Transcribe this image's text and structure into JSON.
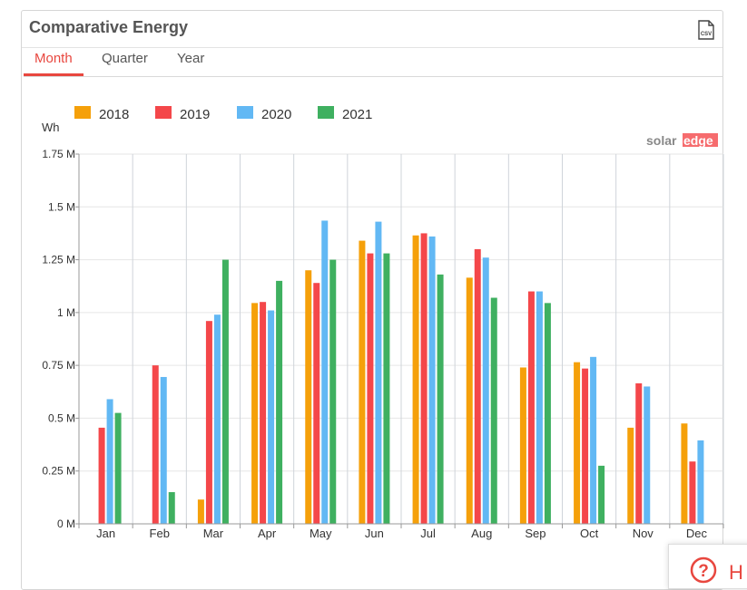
{
  "panel": {
    "title": "Comparative Energy",
    "csv_icon": "csv-download-icon",
    "csv_label": "CSV"
  },
  "tabs": [
    {
      "label": "Month",
      "active": true
    },
    {
      "label": "Quarter",
      "active": false
    },
    {
      "label": "Year",
      "active": false
    }
  ],
  "brand": {
    "prefix": "solar",
    "suffix": "edge"
  },
  "help": {
    "label": "H",
    "icon": "question-circle-icon"
  },
  "colors": {
    "accent": "#e8473f",
    "2018": "#f5a00a",
    "2019": "#f4474a",
    "2020": "#62b8f4",
    "2021": "#3fb060"
  },
  "chart_data": {
    "type": "bar",
    "ylabel": "Wh",
    "ylim": [
      0,
      1750000
    ],
    "yticks": [
      {
        "value": 0,
        "label": "0 M"
      },
      {
        "value": 250000,
        "label": "0.25 M"
      },
      {
        "value": 500000,
        "label": "0.5 M"
      },
      {
        "value": 750000,
        "label": "0.75 M"
      },
      {
        "value": 1000000,
        "label": "1 M"
      },
      {
        "value": 1250000,
        "label": "1.25 M"
      },
      {
        "value": 1500000,
        "label": "1.5 M"
      },
      {
        "value": 1750000,
        "label": "1.75 M"
      }
    ],
    "categories": [
      "Jan",
      "Feb",
      "Mar",
      "Apr",
      "May",
      "Jun",
      "Jul",
      "Aug",
      "Sep",
      "Oct",
      "Nov",
      "Dec"
    ],
    "legend_position": "top-left",
    "grid": true,
    "series": [
      {
        "name": "2018",
        "color": "#f5a00a",
        "values": [
          null,
          null,
          115000,
          1045000,
          1200000,
          1340000,
          1365000,
          1165000,
          740000,
          765000,
          455000,
          475000
        ]
      },
      {
        "name": "2019",
        "color": "#f4474a",
        "values": [
          455000,
          750000,
          960000,
          1050000,
          1140000,
          1280000,
          1375000,
          1300000,
          1100000,
          735000,
          665000,
          295000
        ]
      },
      {
        "name": "2020",
        "color": "#62b8f4",
        "values": [
          590000,
          695000,
          990000,
          1010000,
          1435000,
          1430000,
          1360000,
          1260000,
          1100000,
          790000,
          650000,
          395000
        ]
      },
      {
        "name": "2021",
        "color": "#3fb060",
        "values": [
          525000,
          150000,
          1250000,
          1150000,
          1250000,
          1280000,
          1180000,
          1070000,
          1045000,
          275000,
          null,
          null
        ]
      }
    ]
  }
}
